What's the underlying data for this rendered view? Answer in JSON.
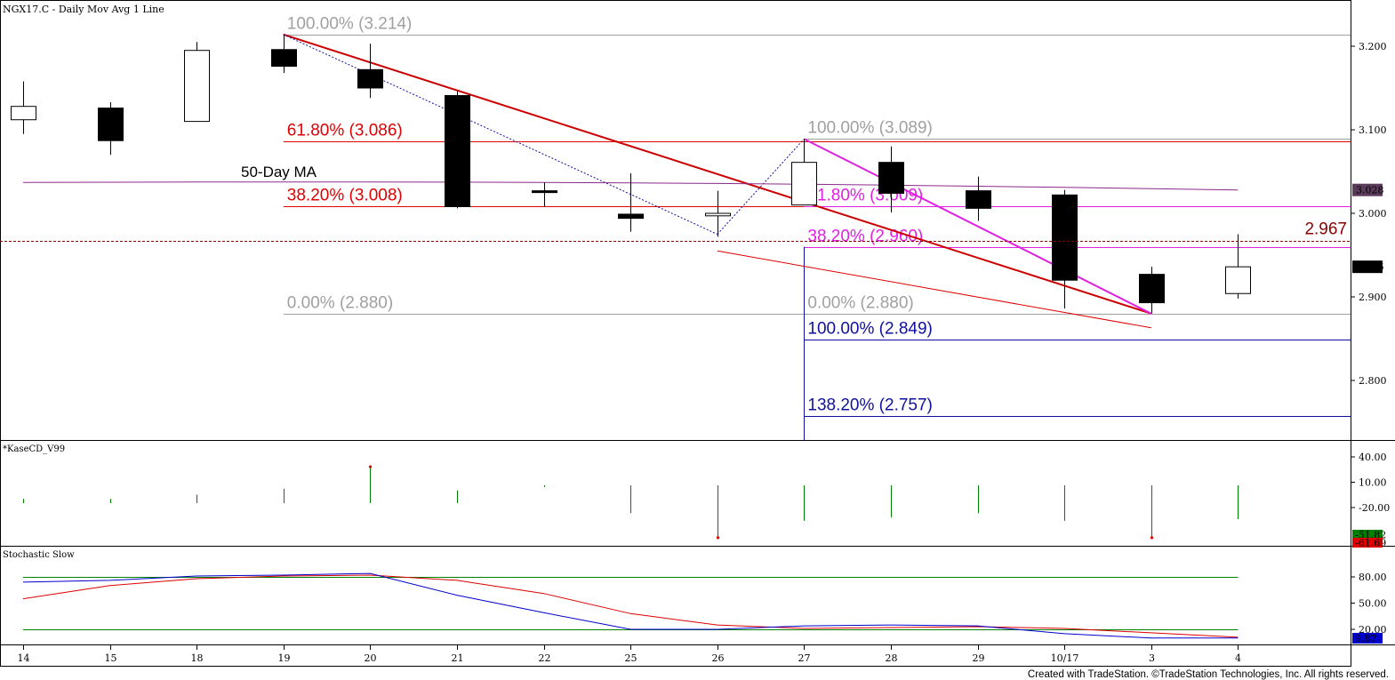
{
  "header": {
    "title": "NGX17.C - Daily  Mov Avg 1 Line"
  },
  "footer": {
    "credit": "Created with TradeStation. ©TradeStation Technologies, Inc. All rights reserved."
  },
  "colors": {
    "background": "#ffffff",
    "trend_line": "#cc0000",
    "fib_red": "#e00000",
    "fib_gray": "#a0a0a0",
    "fib_magenta": "#e020e0",
    "fib_blue": "#1010a0",
    "ma_line": "#8b2a8b",
    "kase_bar": "#008000",
    "stoch_k": "#0000cc",
    "stoch_d": "#dd0000",
    "stoch_band": "#008000",
    "label_red": "#8b0000"
  },
  "chart_data": {
    "type": "candlestick",
    "title": "NGX17.C - Daily  Mov Avg 1 Line",
    "x_labels": [
      "14",
      "15",
      "18",
      "19",
      "20",
      "21",
      "22",
      "25",
      "26",
      "27",
      "28",
      "29",
      "10/17",
      "3",
      "4"
    ],
    "candles": [
      {
        "open": 3.112,
        "high": 3.158,
        "low": 3.095,
        "close": 3.128
      },
      {
        "open": 3.126,
        "high": 3.133,
        "low": 3.07,
        "close": 3.087
      },
      {
        "open": 3.11,
        "high": 3.205,
        "low": 3.11,
        "close": 3.195
      },
      {
        "open": 3.196,
        "high": 3.214,
        "low": 3.168,
        "close": 3.176
      },
      {
        "open": 3.172,
        "high": 3.203,
        "low": 3.138,
        "close": 3.15
      },
      {
        "open": 3.141,
        "high": 3.146,
        "low": 3.006,
        "close": 3.008
      },
      {
        "open": 3.027,
        "high": 3.037,
        "low": 3.008,
        "close": 3.026
      },
      {
        "open": 2.999,
        "high": 3.048,
        "low": 2.978,
        "close": 2.994
      },
      {
        "open": 2.997,
        "high": 3.027,
        "low": 2.972,
        "close": 3.0
      },
      {
        "open": 3.01,
        "high": 3.089,
        "low": 3.01,
        "close": 3.061
      },
      {
        "open": 3.061,
        "high": 3.08,
        "low": 3.001,
        "close": 3.024
      },
      {
        "open": 3.027,
        "high": 3.044,
        "low": 2.991,
        "close": 3.006
      },
      {
        "open": 3.022,
        "high": 3.028,
        "low": 2.886,
        "close": 2.92
      },
      {
        "open": 2.927,
        "high": 2.936,
        "low": 2.88,
        "close": 2.893
      },
      {
        "open": 2.904,
        "high": 2.975,
        "low": 2.898,
        "close": 2.936
      }
    ],
    "moving_average": {
      "name": "50-Day MA",
      "start": 3.037,
      "end": 3.028
    },
    "price_axis": {
      "ticks": [
        "3.200",
        "3.100",
        "3.000",
        "2.900",
        "2.800"
      ],
      "ylim": [
        2.74,
        3.23
      ]
    },
    "price_markers": [
      {
        "label": "3.028",
        "value": 3.028,
        "style": "dark"
      },
      {
        "label": "2.936",
        "value": 2.936,
        "style": "black"
      }
    ],
    "reference_line": {
      "label": "2.967",
      "value": 2.967
    },
    "fib_levels": [
      {
        "label": "100.00% (3.214)",
        "value": 3.214,
        "color": "gray",
        "from_bar": 3,
        "to_bar": "edge"
      },
      {
        "label": "61.80% (3.086)",
        "value": 3.086,
        "color": "red",
        "from_bar": 3,
        "to_bar": "edge"
      },
      {
        "label": "38.20% (3.008)",
        "value": 3.008,
        "color": "red",
        "from_bar": 3,
        "to_bar": "edge"
      },
      {
        "label": "0.00% (2.880)",
        "value": 2.88,
        "color": "gray",
        "from_bar": 3,
        "to_bar": "edge"
      },
      {
        "label": "100.00% (3.089)",
        "value": 3.089,
        "color": "gray",
        "from_bar": 9,
        "to_bar": "edge"
      },
      {
        "label": "61.80% (3.009)",
        "value": 3.009,
        "color": "magenta",
        "from_bar": 9,
        "to_bar": "edge"
      },
      {
        "label": "38.20% (2.960)",
        "value": 2.96,
        "color": "magenta",
        "from_bar": 9,
        "to_bar": "edge"
      },
      {
        "label": "0.00% (2.880)",
        "value": 2.88,
        "color": "gray",
        "from_bar": 9,
        "to_bar": "edge"
      },
      {
        "label": "100.00% (2.849)",
        "value": 2.849,
        "color": "blue",
        "from_bar": 9,
        "to_bar": "edge"
      },
      {
        "label": "138.20% (2.757)",
        "value": 2.757,
        "color": "blue",
        "from_bar": 9,
        "to_bar": "edge"
      }
    ],
    "trend_lines": [
      {
        "from": {
          "bar": 3,
          "value": 3.214
        },
        "to": {
          "bar": 13,
          "value": 2.88
        },
        "color": "trend",
        "width": 2
      },
      {
        "from": {
          "bar": 9,
          "value": 3.089
        },
        "to": {
          "bar": 13,
          "value": 2.88
        },
        "color": "magenta",
        "width": 2
      },
      {
        "from": {
          "bar": 8,
          "value": 2.955
        },
        "to": {
          "bar": 13,
          "value": 2.863
        },
        "color": "red",
        "width": 1
      },
      {
        "from": {
          "bar": 3,
          "value": 3.214
        },
        "to": {
          "bar": 8,
          "value": 2.975
        },
        "color": "blue_dotted",
        "width": 1
      },
      {
        "from": {
          "bar": 8,
          "value": 2.975
        },
        "to": {
          "bar": 9,
          "value": 3.089
        },
        "color": "blue_dotted",
        "width": 1
      }
    ],
    "kase": {
      "title": "*KaseCD_V99",
      "ticks": [
        "40.00",
        "10.00",
        "-20.00"
      ],
      "ylim": [
        -62,
        48
      ],
      "values": [
        5,
        5,
        10,
        17,
        43,
        15,
        -2,
        -33,
        -62,
        -42,
        -38,
        -33,
        -42,
        -62,
        -40
      ],
      "peak_dots": [
        4,
        8,
        13
      ],
      "markers": [
        {
          "label": "-51.82",
          "value": -51.82,
          "style": "green"
        },
        {
          "label": "-61.69",
          "value": -61.69,
          "style": "red"
        }
      ]
    },
    "stochastic": {
      "title": "Stochastic Slow",
      "ticks": [
        "80.00",
        "50.00",
        "20.00"
      ],
      "ylim": [
        0,
        100
      ],
      "bands": [
        80,
        20
      ],
      "k": [
        74,
        76,
        81,
        82,
        84,
        59,
        39,
        20,
        20,
        24,
        25,
        24,
        15,
        10,
        10
      ],
      "d": [
        55,
        70,
        78,
        81,
        82,
        76,
        61,
        38,
        25,
        21,
        22,
        23,
        21,
        16,
        11
      ],
      "markers": [
        {
          "label": "9.87",
          "value": 9.87,
          "style": "blue"
        }
      ]
    }
  }
}
